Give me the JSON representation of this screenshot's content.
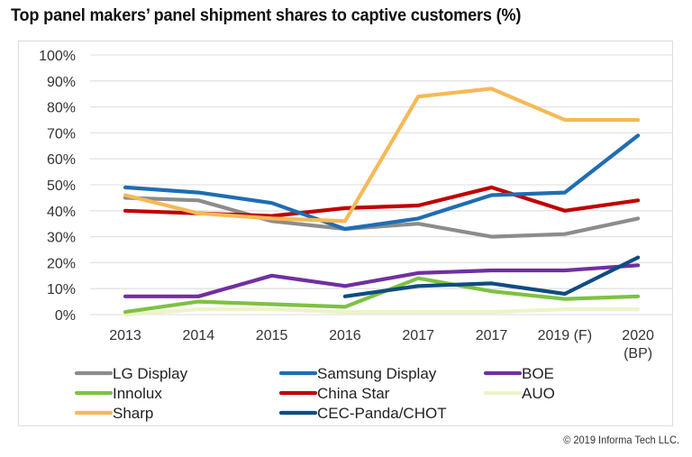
{
  "title": "Top panel makers’ panel shipment shares to captive customers (%)",
  "copyright": "© 2019 Informa Tech LLC.",
  "chart_data": {
    "type": "line",
    "title": "Top panel makers’ panel shipment shares to captive customers (%)",
    "xlabel": "",
    "ylabel": "",
    "categories": [
      "2013",
      "2014",
      "2015",
      "2016",
      "2017",
      "2017",
      "2019 (F)",
      "2020 (BP)"
    ],
    "category_lines": [
      [
        "2013"
      ],
      [
        "2014"
      ],
      [
        "2015"
      ],
      [
        "2016"
      ],
      [
        "2017"
      ],
      [
        "2017"
      ],
      [
        "2019 (F)"
      ],
      [
        "2020",
        "(BP)"
      ]
    ],
    "ylim": [
      0,
      100
    ],
    "yticks": [
      0,
      10,
      20,
      30,
      40,
      50,
      60,
      70,
      80,
      90,
      100
    ],
    "ytick_labels": [
      "0%",
      "10%",
      "20%",
      "30%",
      "40%",
      "50%",
      "60%",
      "70%",
      "80%",
      "90%",
      "100%"
    ],
    "grid": true,
    "legend_position": "bottom",
    "series": [
      {
        "name": "LG Display",
        "color": "#8c8c8c",
        "values": [
          45,
          44,
          36,
          33,
          35,
          30,
          31,
          37
        ]
      },
      {
        "name": "Samsung Display",
        "color": "#1f6db3",
        "values": [
          49,
          47,
          43,
          33,
          37,
          46,
          47,
          69
        ]
      },
      {
        "name": "BOE",
        "color": "#7030a0",
        "values": [
          7,
          7,
          15,
          11,
          16,
          17,
          17,
          19
        ]
      },
      {
        "name": "Innolux",
        "color": "#7dc242",
        "values": [
          1,
          5,
          4,
          3,
          14,
          9,
          6,
          7
        ]
      },
      {
        "name": "China Star",
        "color": "#c00000",
        "values": [
          40,
          39,
          38,
          41,
          42,
          49,
          40,
          44
        ]
      },
      {
        "name": "AUO",
        "color": "#eef3c8",
        "values": [
          0,
          2,
          2,
          1,
          1,
          1,
          2,
          2
        ]
      },
      {
        "name": "Sharp",
        "color": "#f6b957",
        "values": [
          46,
          39,
          37,
          36,
          84,
          87,
          75,
          75
        ]
      },
      {
        "name": "CEC-Panda/CHOT",
        "color": "#0f4c81",
        "values": [
          null,
          null,
          null,
          7,
          11,
          12,
          8,
          22
        ]
      }
    ]
  }
}
